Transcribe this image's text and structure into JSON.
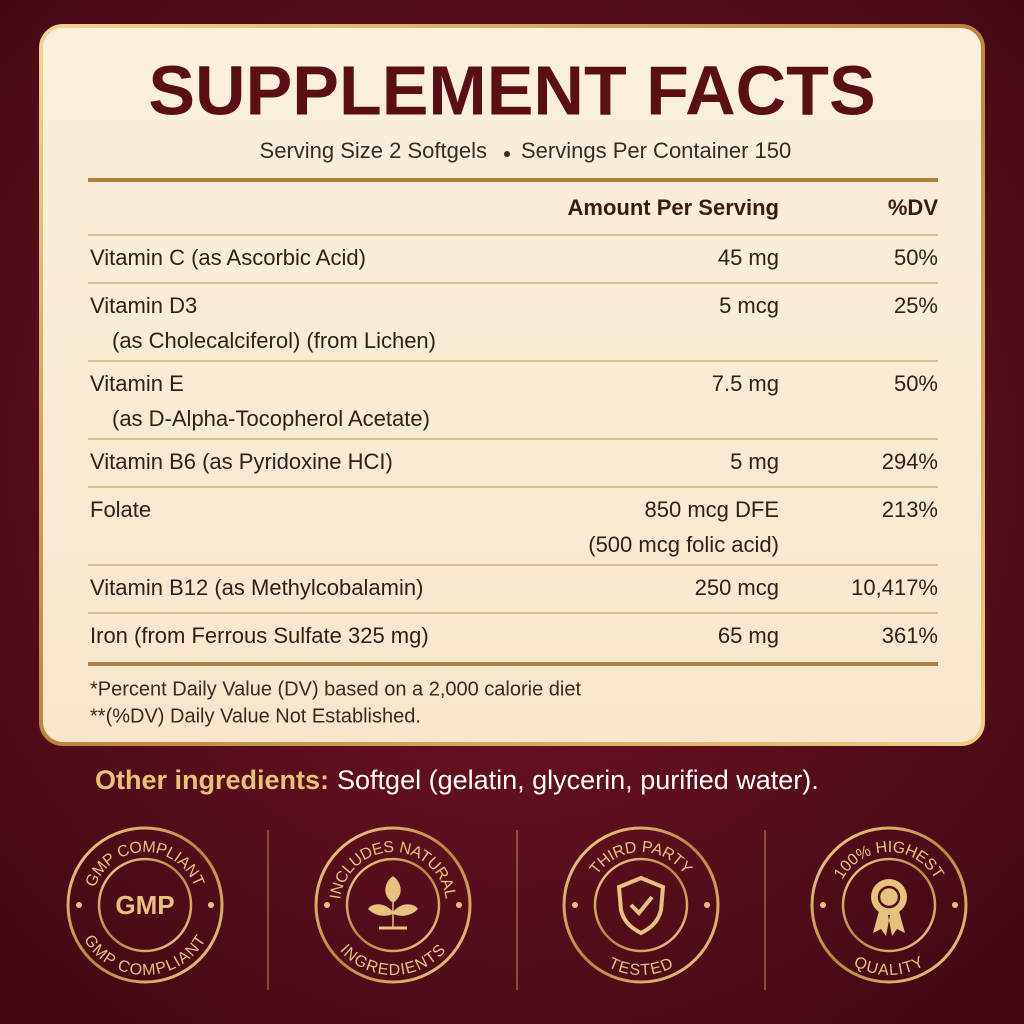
{
  "header": {
    "title": "SUPPLEMENT FACTS",
    "serving_size": "Serving Size 2 Softgels",
    "servings_per_container": "Servings Per Container 150"
  },
  "table": {
    "columns": [
      "Amount Per Serving",
      "%DV"
    ],
    "rows": [
      {
        "name": [
          "Vitamin C (as Ascorbic Acid)"
        ],
        "amount": [
          "45 mg"
        ],
        "dv": "50%"
      },
      {
        "name": [
          "Vitamin D3",
          "(as Cholecalciferol) (from Lichen)"
        ],
        "amount": [
          "5 mcg"
        ],
        "dv": "25%"
      },
      {
        "name": [
          "Vitamin E",
          "(as D-Alpha-Tocopherol Acetate)"
        ],
        "amount": [
          "7.5 mg"
        ],
        "dv": "50%"
      },
      {
        "name": [
          "Vitamin B6 (as Pyridoxine HCI)"
        ],
        "amount": [
          "5 mg"
        ],
        "dv": "294%"
      },
      {
        "name": [
          "Folate"
        ],
        "amount": [
          "850 mcg DFE",
          "(500 mcg folic acid)"
        ],
        "dv": "213%"
      },
      {
        "name": [
          "Vitamin B12 (as Methylcobalamin)"
        ],
        "amount": [
          "250 mcg"
        ],
        "dv": "10,417%"
      },
      {
        "name": [
          "Iron (from Ferrous Sulfate 325 mg)"
        ],
        "amount": [
          "65 mg"
        ],
        "dv": "361%"
      }
    ]
  },
  "footnotes": [
    "*Percent Daily Value (DV) based on a 2,000 calorie diet",
    "**(%DV) Daily Value Not Established."
  ],
  "other_ingredients": {
    "label": "Other ingredients:",
    "text": "Softgel (gelatin, glycerin, purified water)."
  },
  "badges": [
    {
      "top": "GMP COMPLIANT",
      "center": "GMP",
      "bottom": "GMP COMPLIANT"
    },
    {
      "top": "INCLUDES NATURAL",
      "bottom": "INGREDIENTS"
    },
    {
      "top": "THIRD PARTY",
      "bottom": "TESTED"
    },
    {
      "top": "100% HIGHEST",
      "bottom": "QUALITY"
    }
  ]
}
